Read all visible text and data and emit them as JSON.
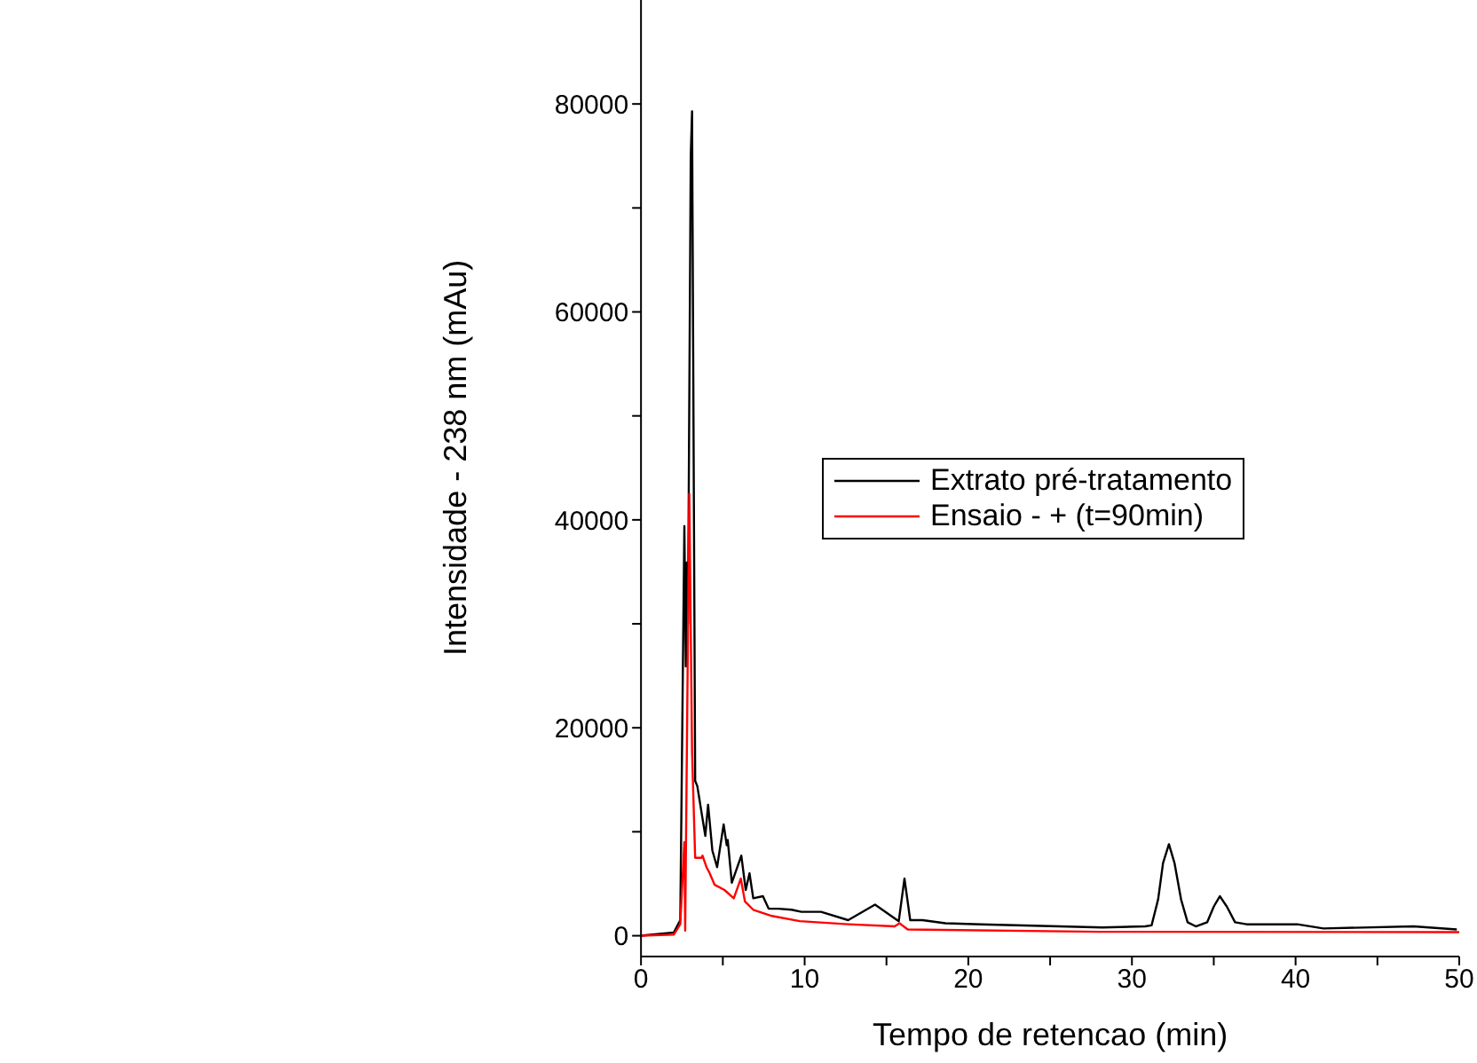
{
  "chart_data": {
    "type": "line",
    "xlabel": "Tempo de retencao (min)",
    "ylabel": "Intensidade - 238 nm (mAu)",
    "xlim": [
      0,
      50
    ],
    "xticks": [
      0,
      {
        "value": 5,
        "label": null
      },
      10,
      {
        "value": 15,
        "label": null
      },
      20,
      {
        "value": 25,
        "label": null
      },
      30,
      {
        "value": 35,
        "label": null
      },
      40,
      {
        "value": 45,
        "label": null
      },
      50
    ],
    "ylim": [
      -2000,
      90000
    ],
    "yticks": [
      0,
      {
        "value": 10000,
        "label": null
      },
      20000,
      {
        "value": 30000,
        "label": null
      },
      40000,
      {
        "value": 50000,
        "label": null
      },
      60000,
      {
        "value": 70000,
        "label": null
      },
      80000
    ],
    "legend": "right",
    "marker": "none",
    "line_style": "solid",
    "series": [
      {
        "name": "Extrato pré-tratamento",
        "color": "#000000",
        "x": [
          0,
          2.0,
          2.4,
          2.65,
          2.74,
          2.8,
          2.87,
          3.04,
          3.12,
          3.31,
          3.44,
          3.93,
          4.1,
          4.36,
          4.65,
          5.05,
          5.24,
          5.3,
          5.55,
          6.13,
          6.4,
          6.63,
          6.86,
          7.45,
          7.8,
          8.4,
          9.2,
          9.8,
          11.0,
          12.66,
          14.3,
          15.75,
          16.1,
          16.45,
          17.2,
          18.6,
          20.75,
          28.2,
          30.8,
          31.2,
          31.6,
          31.9,
          32.26,
          32.6,
          33.0,
          33.4,
          33.9,
          34.6,
          35.0,
          35.37,
          35.8,
          36.3,
          37.0,
          40.1,
          41.7,
          47.2,
          49.85
        ],
        "values": [
          0,
          300,
          1500,
          39400,
          25900,
          35900,
          30000,
          75000,
          79300,
          14900,
          14400,
          9600,
          12600,
          8200,
          6600,
          10700,
          8700,
          9200,
          5100,
          7700,
          4400,
          6000,
          3600,
          3800,
          2600,
          2600,
          2500,
          2300,
          2300,
          1500,
          3000,
          1400,
          5500,
          1500,
          1500,
          1200,
          1100,
          800,
          900,
          1000,
          3500,
          7000,
          8800,
          7000,
          3500,
          1300,
          900,
          1300,
          2800,
          3800,
          2800,
          1300,
          1100,
          1100,
          700,
          900,
          600
        ]
      },
      {
        "name": "Ensaio - + (t=90min)",
        "color": "#ff0000",
        "x": [
          0,
          2.0,
          2.4,
          2.65,
          2.7,
          2.95,
          3.12,
          3.31,
          3.69,
          3.76,
          4.0,
          4.17,
          4.5,
          5.1,
          5.67,
          6.1,
          6.35,
          6.86,
          8.0,
          9.7,
          12.66,
          15.5,
          15.8,
          16.3,
          28.0,
          50
        ],
        "values": [
          0,
          100,
          1100,
          9000,
          500,
          42500,
          17700,
          7500,
          7500,
          7700,
          6600,
          6100,
          4900,
          4400,
          3600,
          5500,
          3300,
          2500,
          1900,
          1400,
          1100,
          900,
          1200,
          600,
          380,
          350
        ]
      }
    ]
  }
}
